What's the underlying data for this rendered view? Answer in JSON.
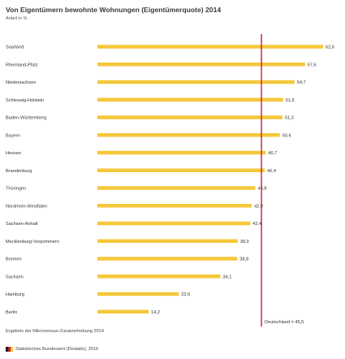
{
  "title": "Von Eigentümern bewohnte Wohnungen (Eigentümerquote) 2014",
  "unit": "Anteil in %",
  "note": "Ergebnis der Mikrozensus-Zusatzerhebung 2014",
  "source": "Statistisches Bundesamt (Destatis), 2016",
  "reference": {
    "label": "Deutschland = 45,5",
    "value": 45.5,
    "color": "#c0202a"
  },
  "colors": {
    "bar": "#f5c73a",
    "text": "#333333"
  },
  "icon": "destatis-logo",
  "chart_data": {
    "type": "bar",
    "orientation": "horizontal",
    "categories": [
      "Saarland",
      "Rheinland-Pfalz",
      "Niedersachsen",
      "Schleswig-Holstein",
      "Baden-Württemberg",
      "Bayern",
      "Hessen",
      "Brandenburg",
      "Thüringen",
      "Nordrhein-Westfalen",
      "Sachsen-Anhalt",
      "Mecklenburg-Vorpommern",
      "Bremen",
      "Sachsen",
      "Hamburg",
      "Berlin"
    ],
    "values": [
      62.6,
      57.6,
      54.7,
      51.5,
      51.3,
      50.6,
      46.7,
      46.4,
      43.8,
      42.8,
      42.4,
      38.9,
      38.8,
      34.1,
      22.6,
      14.2
    ],
    "value_labels": [
      "62,6",
      "57,6",
      "54,7",
      "51,5",
      "51,3",
      "50,6",
      "46,7",
      "46,4",
      "43,8",
      "42,8",
      "42,4",
      "38,9",
      "38,8",
      "34,1",
      "22,6",
      "14,2"
    ],
    "xlim": [
      0,
      62.6
    ],
    "grid": false,
    "legend": "none"
  }
}
